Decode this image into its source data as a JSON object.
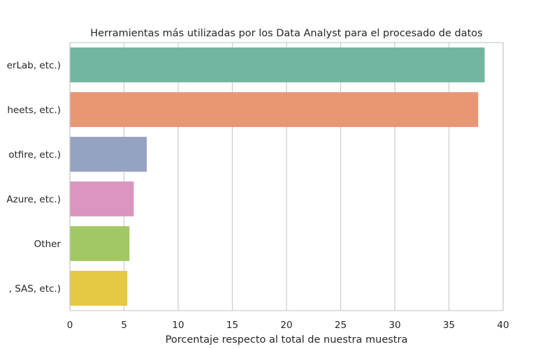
{
  "chart_data": {
    "type": "bar",
    "orientation": "horizontal",
    "title": "Herramientas más utilizadas por los Data Analyst para el procesado de datos",
    "xlabel": "Porcentaje respecto al total de nuestra muestra",
    "ylabel": "",
    "xlim": [
      0,
      40
    ],
    "xticks": [
      0,
      5,
      10,
      15,
      20,
      25,
      30,
      35,
      40
    ],
    "grid": true,
    "categories": [
      "erLab, etc.)",
      "heets, etc.)",
      "otfire, etc.)",
      "Azure, etc.)",
      "Other",
      ", SAS, etc.)"
    ],
    "values": [
      38.3,
      37.7,
      7.1,
      5.9,
      5.5,
      5.3
    ],
    "colors": [
      "#72b6a1",
      "#e99675",
      "#95a3c3",
      "#db96c0",
      "#a2c865",
      "#e5c844"
    ]
  }
}
